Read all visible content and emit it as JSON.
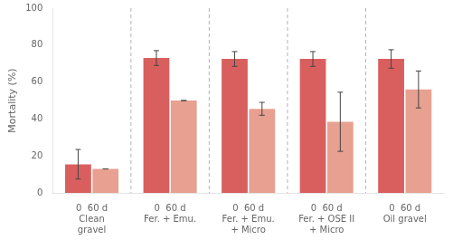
{
  "chart_data": {
    "type": "bar",
    "categories": [
      "Clean\ngravel",
      "Fer. + Emu.",
      "Fer. + Emu.\n+ Micro",
      "Fer. + OSE II\n+ Micro",
      "Oil gravel"
    ],
    "annotations": [
      "0  60 d",
      "0  60 d",
      "0  60 d",
      "0  60 d",
      "0  60 d"
    ],
    "series": [
      {
        "color": "#d95f5f",
        "values": [
          15.5,
          73.0,
          72.5,
          72.5,
          72.5
        ],
        "errors": [
          8.0,
          4.0,
          4.0,
          4.0,
          5.0
        ]
      },
      {
        "color": "#e8a090",
        "values": [
          13.0,
          50.0,
          45.5,
          38.5,
          56.0
        ],
        "errors": [
          0.0,
          0.0,
          3.5,
          16.0,
          10.0
        ]
      }
    ],
    "ylabel": "Mortality (%)",
    "ylim": [
      0,
      100
    ],
    "yticks": [
      0,
      20,
      40,
      60,
      80,
      100
    ],
    "grid": false
  }
}
